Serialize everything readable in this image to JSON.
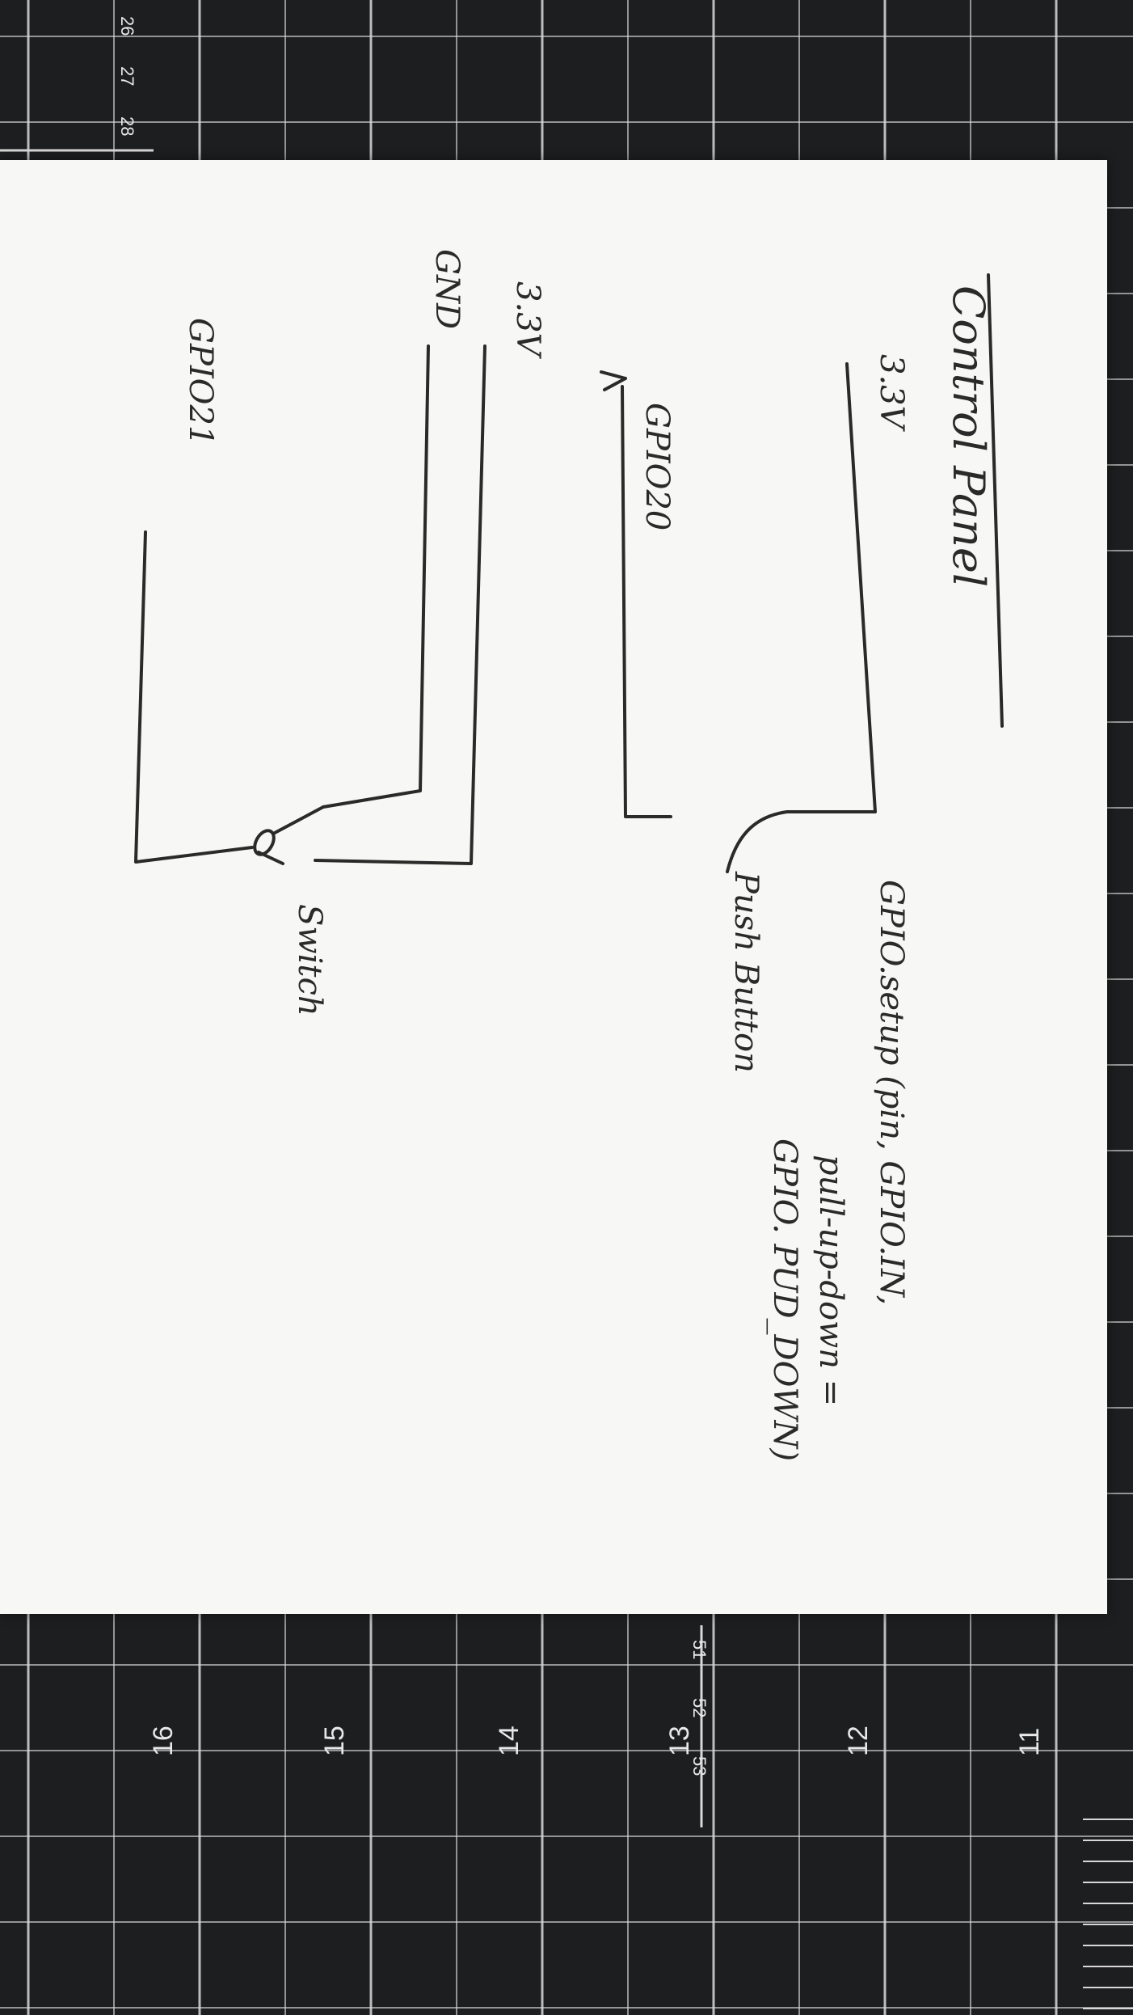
{
  "diagram": {
    "title": "Control Panel",
    "labels": {
      "v33_top": "3.3V",
      "gpio20": "GPIO20",
      "gnd": "GND",
      "v33_second": "3.3V",
      "gpio21": "GPIO21",
      "push_button": "Push Button",
      "switch": "Switch"
    },
    "code": {
      "line1": "GPIO.setup (pin, GPIO.IN,",
      "line2": "pull-up-down =",
      "line3": "GPIO. PUD_DOWN)"
    }
  },
  "cutting_mat": {
    "left_scale": [
      "11",
      "12",
      "13",
      "14",
      "15",
      "16"
    ],
    "top_ruler": [
      "51",
      "52",
      "53"
    ],
    "bottom_ruler": [
      "26",
      "27",
      "28"
    ],
    "colors": {
      "mat": "#1d1e20",
      "grid": "#d8d8d8",
      "paper": "#f7f7f5",
      "ink": "#2a2a2a"
    }
  }
}
